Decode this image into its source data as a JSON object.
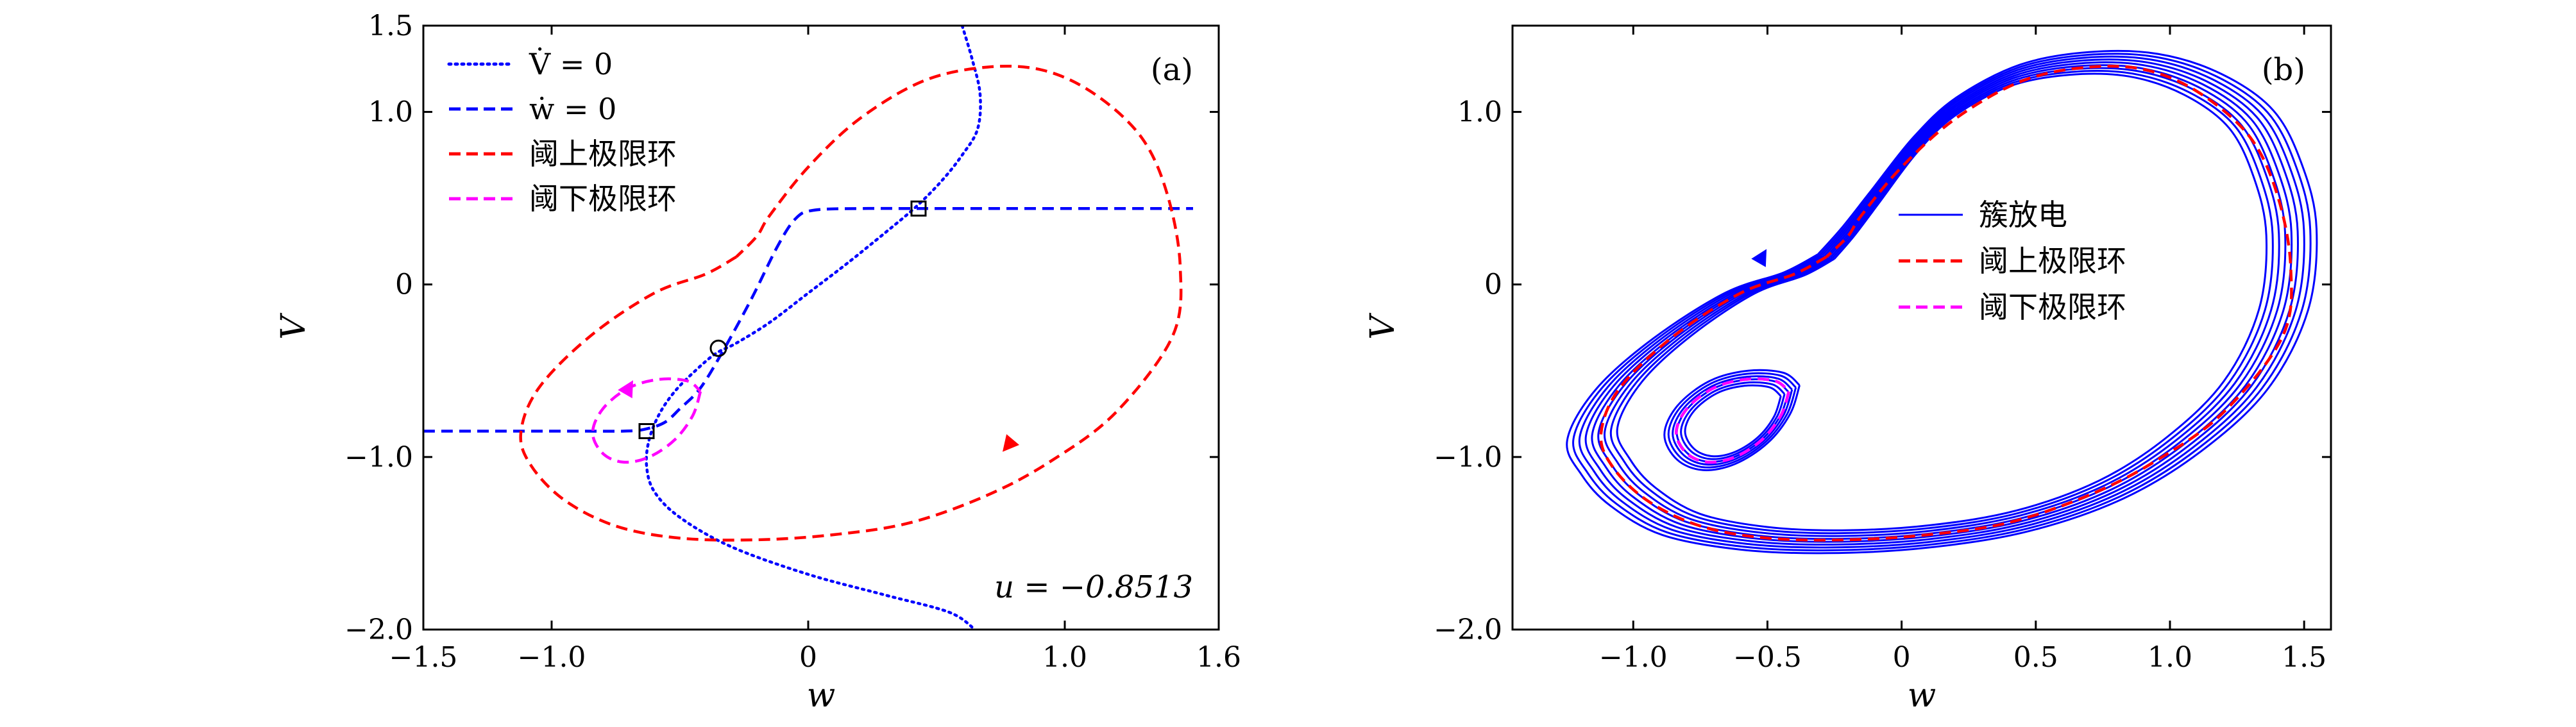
{
  "colors": {
    "nullcline": "#0000ff",
    "upper_cycle": "#ff0000",
    "lower_cycle": "#ff00ff",
    "burst": "#0000ff",
    "axis": "#000000"
  },
  "chart_data": [
    {
      "type": "line",
      "panel_label": "(a)",
      "xlabel": "w",
      "ylabel": "V",
      "xlim": [
        -1.5,
        1.6
      ],
      "ylim": [
        -2.0,
        1.5
      ],
      "x_ticks": [
        -1.5,
        -1.0,
        0,
        1.0,
        1.6
      ],
      "x_tick_labels": [
        "−1.5",
        "−1.0",
        "0",
        "1.0",
        "1.6"
      ],
      "y_ticks": [
        -2.0,
        -1.0,
        0,
        1.0,
        1.5
      ],
      "y_tick_labels": [
        "−2.0",
        "−1.0",
        "0",
        "1.0",
        "1.5"
      ],
      "annotation": "u = −0.8513",
      "legend_position": "top-left",
      "series": [
        {
          "name": "V̇ = 0",
          "style": "dotted",
          "color": "#0000ff",
          "x": [
            0.6,
            0.64,
            0.67,
            0.66,
            0.6,
            0.52,
            0.42,
            0.3,
            0.15,
            0.0,
            -0.15,
            -0.28,
            -0.36,
            -0.44,
            -0.52,
            -0.58,
            -0.62,
            -0.63,
            -0.6,
            -0.5,
            -0.3,
            0.0,
            0.3,
            0.55,
            0.65
          ],
          "y": [
            1.5,
            1.3,
            1.1,
            0.9,
            0.75,
            0.6,
            0.45,
            0.3,
            0.12,
            -0.05,
            -0.22,
            -0.34,
            -0.4,
            -0.5,
            -0.62,
            -0.75,
            -0.9,
            -1.05,
            -1.2,
            -1.35,
            -1.52,
            -1.68,
            -1.8,
            -1.9,
            -2.0
          ]
        },
        {
          "name": "ẇ = 0",
          "style": "dashed",
          "color": "#0000ff",
          "x": [
            -1.5,
            -1.2,
            -0.9,
            -0.72,
            -0.64,
            -0.56,
            -0.5,
            -0.42,
            -0.33,
            -0.22,
            -0.12,
            -0.05,
            0.02,
            0.2,
            0.45,
            0.9,
            1.5
          ],
          "y": [
            -0.85,
            -0.85,
            -0.85,
            -0.85,
            -0.84,
            -0.8,
            -0.72,
            -0.6,
            -0.38,
            -0.08,
            0.22,
            0.38,
            0.43,
            0.44,
            0.44,
            0.44,
            0.44
          ]
        },
        {
          "name": "阈上极限环",
          "style": "dashed",
          "color": "#ff0000",
          "x": [
            -0.28,
            -0.4,
            -0.6,
            -0.85,
            -1.05,
            -1.12,
            -1.08,
            -0.95,
            -0.75,
            -0.5,
            -0.2,
            0.1,
            0.4,
            0.7,
            0.95,
            1.2,
            1.42,
            1.45,
            1.4,
            1.3,
            1.12,
            0.92,
            0.7,
            0.45,
            0.2,
            0.0,
            -0.15,
            -0.2,
            -0.28
          ],
          "y": [
            0.16,
            0.06,
            -0.05,
            -0.3,
            -0.6,
            -0.86,
            -1.05,
            -1.25,
            -1.4,
            -1.47,
            -1.48,
            -1.45,
            -1.38,
            -1.22,
            -1.02,
            -0.74,
            -0.3,
            0.1,
            0.52,
            0.85,
            1.1,
            1.24,
            1.26,
            1.18,
            0.96,
            0.68,
            0.4,
            0.28,
            0.16
          ]
        },
        {
          "name": "阈下极限环",
          "style": "dashed",
          "color": "#ff00ff",
          "x": [
            -0.42,
            -0.45,
            -0.52,
            -0.62,
            -0.72,
            -0.8,
            -0.84,
            -0.8,
            -0.7,
            -0.58,
            -0.47,
            -0.42
          ],
          "y": [
            -0.62,
            -0.76,
            -0.9,
            -1.0,
            -1.03,
            -0.98,
            -0.86,
            -0.72,
            -0.6,
            -0.55,
            -0.56,
            -0.62
          ]
        }
      ],
      "equilibria": [
        {
          "w": -0.63,
          "V": -0.85,
          "marker": "square"
        },
        {
          "w": -0.35,
          "V": -0.37,
          "marker": "circle"
        },
        {
          "w": 0.43,
          "V": 0.44,
          "marker": "square"
        }
      ],
      "arrows": [
        {
          "series": "阈上极限环",
          "w": 0.78,
          "V": -0.93
        },
        {
          "series": "阈下极限环",
          "w": -0.7,
          "V": -0.6
        }
      ]
    },
    {
      "type": "line",
      "panel_label": "(b)",
      "xlabel": "w",
      "ylabel": "V",
      "xlim": [
        -1.45,
        1.6
      ],
      "ylim": [
        -2.0,
        1.5
      ],
      "x_ticks": [
        -1.0,
        -0.5,
        0,
        0.5,
        1.0,
        1.5
      ],
      "x_tick_labels": [
        "−1.0",
        "−0.5",
        "0",
        "0.5",
        "1.0",
        "1.5"
      ],
      "y_ticks": [
        -2.0,
        -1.0,
        0,
        1.0
      ],
      "y_tick_labels": [
        "−2.0",
        "−1.0",
        "0",
        "1.0"
      ],
      "legend_position": "center-right",
      "series": [
        {
          "name": "簇放电",
          "style": "solid",
          "color": "#0000ff",
          "x": [
            -0.28,
            -0.4,
            -0.6,
            -0.85,
            -1.05,
            -1.15,
            -1.1,
            -1.0,
            -0.82,
            -0.55,
            -0.25,
            0.1,
            0.45,
            0.78,
            1.05,
            1.28,
            1.42,
            1.45,
            1.4,
            1.3,
            1.12,
            0.9,
            0.66,
            0.42,
            0.2,
            0.05,
            -0.1,
            -0.2,
            -0.28
          ],
          "y": [
            0.16,
            0.06,
            -0.05,
            -0.3,
            -0.58,
            -0.86,
            -1.05,
            -1.22,
            -1.38,
            -1.46,
            -1.48,
            -1.45,
            -1.36,
            -1.18,
            -0.92,
            -0.58,
            -0.15,
            0.3,
            0.65,
            0.95,
            1.15,
            1.26,
            1.27,
            1.2,
            1.02,
            0.8,
            0.5,
            0.3,
            0.16
          ]
        },
        {
          "name": "阈上极限环",
          "style": "dashed",
          "color": "#ff0000",
          "x": [
            -0.28,
            -0.4,
            -0.6,
            -0.85,
            -1.05,
            -1.12,
            -1.08,
            -0.95,
            -0.75,
            -0.5,
            -0.2,
            0.1,
            0.4,
            0.7,
            0.95,
            1.2,
            1.42,
            1.45,
            1.4,
            1.3,
            1.12,
            0.92,
            0.7,
            0.45,
            0.2,
            0.0,
            -0.15,
            -0.2,
            -0.28
          ],
          "y": [
            0.16,
            0.06,
            -0.05,
            -0.3,
            -0.6,
            -0.86,
            -1.05,
            -1.25,
            -1.4,
            -1.47,
            -1.48,
            -1.45,
            -1.38,
            -1.22,
            -1.02,
            -0.74,
            -0.3,
            0.1,
            0.52,
            0.85,
            1.1,
            1.24,
            1.26,
            1.18,
            0.96,
            0.68,
            0.4,
            0.28,
            0.16
          ]
        },
        {
          "name": "阈下极限环",
          "style": "dashed",
          "color": "#ff00ff",
          "x": [
            -0.42,
            -0.45,
            -0.52,
            -0.62,
            -0.72,
            -0.8,
            -0.84,
            -0.8,
            -0.7,
            -0.58,
            -0.47,
            -0.42
          ],
          "y": [
            -0.62,
            -0.76,
            -0.9,
            -1.0,
            -1.03,
            -0.98,
            -0.86,
            -0.72,
            -0.6,
            -0.55,
            -0.56,
            -0.62
          ]
        }
      ],
      "arrows": [
        {
          "series": "簇放电",
          "w": -0.52,
          "V": 0.16
        }
      ]
    }
  ]
}
